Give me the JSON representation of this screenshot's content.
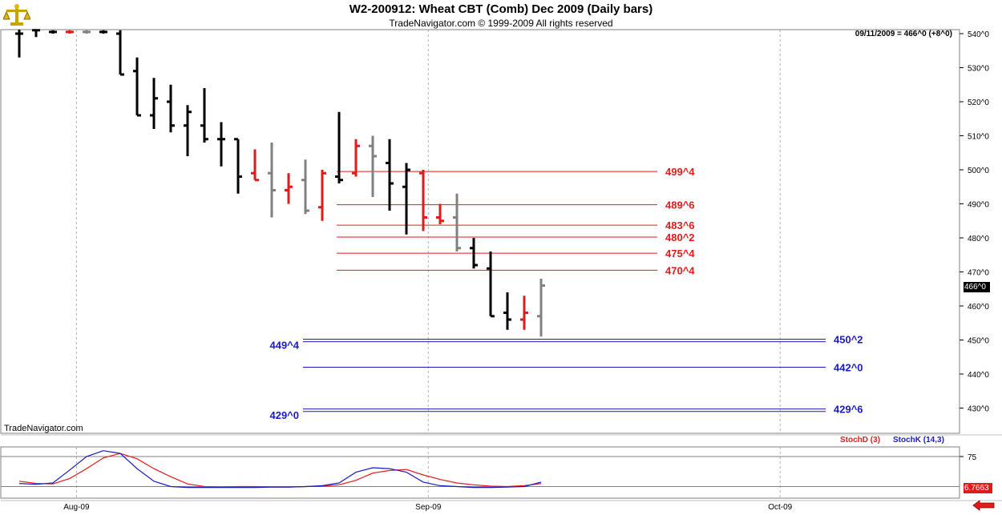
{
  "header": {
    "title": "W2-200912:  Wheat CBT (Comb) Dec 2009  (Daily bars)",
    "subtitle": "TradeNavigator.com © 1999-2009 All rights reserved",
    "stamp": "09/11/2009 = 466^0 (+8^0)",
    "brand": "TradeNavigator.com"
  },
  "icons": {
    "logo": "scales-logo-icon",
    "nav": "left-arrow-icon"
  },
  "colors": {
    "up": "#e31a1a",
    "down": "#000000",
    "flat": "#808080",
    "red_level": "#e31a1a",
    "blue_level": "#1a1ac8",
    "stoch_d": "#e31a1a",
    "stoch_k": "#1a1ac8"
  },
  "chart_data": [
    {
      "type": "ohlc",
      "title": "W2-200912:  Wheat CBT (Comb) Dec 2009  (Daily bars)",
      "y_axis_side": "right",
      "ylim": [
        423,
        542
      ],
      "y_ticks": [
        "540^0",
        "530^0",
        "520^0",
        "510^0",
        "500^0",
        "490^0",
        "480^0",
        "470^0",
        "460^0",
        "450^0",
        "440^0",
        "430^0"
      ],
      "y_tick_values": [
        540,
        530,
        520,
        510,
        500,
        490,
        480,
        470,
        460,
        450,
        440,
        430
      ],
      "x_ticks": [
        "Aug-09",
        "Sep-09",
        "Oct-09"
      ],
      "last_price_label": "466^0",
      "grid": "vertical dashed at month starts",
      "bars": [
        {
          "h": 542,
          "l": 533,
          "o": 540,
          "c": 540,
          "col": "down"
        },
        {
          "h": 542,
          "l": 539,
          "o": 541,
          "c": 541,
          "col": "down"
        },
        {
          "h": 541,
          "l": 540,
          "o": 540.5,
          "c": 540.5,
          "col": "down"
        },
        {
          "h": 541,
          "l": 540,
          "o": 540.5,
          "c": 540.5,
          "col": "up"
        },
        {
          "h": 541,
          "l": 540,
          "o": 540.5,
          "c": 540.5,
          "col": "flat"
        },
        {
          "h": 541,
          "l": 540,
          "o": 540.5,
          "c": 540.5,
          "col": "down"
        },
        {
          "h": 541,
          "l": 528,
          "o": 540,
          "c": 528,
          "col": "down"
        },
        {
          "h": 533,
          "l": 516,
          "o": 529,
          "c": 516,
          "col": "down"
        },
        {
          "h": 527,
          "l": 512,
          "o": 516,
          "c": 521,
          "col": "down"
        },
        {
          "h": 525,
          "l": 511,
          "o": 520,
          "c": 513,
          "col": "down"
        },
        {
          "h": 519,
          "l": 504,
          "o": 513,
          "c": 517,
          "col": "down"
        },
        {
          "h": 524,
          "l": 508,
          "o": 513,
          "c": 509,
          "col": "down"
        },
        {
          "h": 514,
          "l": 501,
          "o": 509,
          "c": 509,
          "col": "down"
        },
        {
          "h": 509,
          "l": 493,
          "o": 509,
          "c": 498,
          "col": "down"
        },
        {
          "h": 506,
          "l": 497,
          "o": 499,
          "c": 497,
          "col": "up"
        },
        {
          "h": 508,
          "l": 486,
          "o": 499,
          "c": 494,
          "col": "flat"
        },
        {
          "h": 499,
          "l": 490,
          "o": 494,
          "c": 495,
          "col": "up"
        },
        {
          "h": 503,
          "l": 487,
          "o": 497,
          "c": 488,
          "col": "flat"
        },
        {
          "h": 500,
          "l": 485,
          "o": 489,
          "c": 499,
          "col": "up"
        },
        {
          "h": 517,
          "l": 496,
          "o": 498,
          "c": 497,
          "col": "down"
        },
        {
          "h": 509,
          "l": 498,
          "o": 499,
          "c": 507,
          "col": "up"
        },
        {
          "h": 510,
          "l": 492,
          "o": 507,
          "c": 504,
          "col": "flat"
        },
        {
          "h": 509,
          "l": 488,
          "o": 502,
          "c": 496,
          "col": "down"
        },
        {
          "h": 502,
          "l": 481,
          "o": 495,
          "c": 500,
          "col": "down"
        },
        {
          "h": 500,
          "l": 482,
          "o": 499,
          "c": 486,
          "col": "up"
        },
        {
          "h": 490,
          "l": 484,
          "o": 486,
          "c": 485,
          "col": "up"
        },
        {
          "h": 493,
          "l": 476,
          "o": 486,
          "c": 477,
          "col": "flat"
        },
        {
          "h": 480,
          "l": 471,
          "o": 477,
          "c": 472,
          "col": "down"
        },
        {
          "h": 476,
          "l": 457,
          "o": 471,
          "c": 457,
          "col": "down"
        },
        {
          "h": 464,
          "l": 453,
          "o": 458,
          "c": 456,
          "col": "down"
        },
        {
          "h": 463,
          "l": 453,
          "o": 456,
          "c": 458,
          "col": "up"
        },
        {
          "h": 468,
          "l": 451,
          "o": 457,
          "c": 466,
          "col": "flat"
        }
      ],
      "levels": [
        {
          "value": 499.5,
          "label": "499^4",
          "color": "red_level",
          "side": "right",
          "start_bar": 19
        },
        {
          "value": 489.75,
          "label": "489^6",
          "color": "red_level",
          "side": "right",
          "start_bar": 19
        },
        {
          "value": 483.75,
          "label": "483^6",
          "color": "red_level",
          "side": "right",
          "start_bar": 19
        },
        {
          "value": 480.25,
          "label": "480^2",
          "color": "red_level",
          "side": "right",
          "start_bar": 19
        },
        {
          "value": 475.5,
          "label": "475^4",
          "color": "red_level",
          "side": "right",
          "start_bar": 19
        },
        {
          "value": 470.5,
          "label": "470^4",
          "color": "red_level",
          "side": "right",
          "start_bar": 19
        },
        {
          "value": 450.25,
          "label": "450^2",
          "color": "blue_level",
          "side": "right",
          "start_bar": 17
        },
        {
          "value": 449.5,
          "label": "449^4",
          "color": "blue_level",
          "side": "left",
          "start_bar": 17
        },
        {
          "value": 442.0,
          "label": "442^0",
          "color": "blue_level",
          "side": "right",
          "start_bar": 17
        },
        {
          "value": 429.75,
          "label": "429^6",
          "color": "blue_level",
          "side": "right",
          "start_bar": 17
        },
        {
          "value": 429.0,
          "label": "429^0",
          "color": "blue_level",
          "side": "left",
          "start_bar": 17
        }
      ]
    },
    {
      "type": "line",
      "legend": [
        "StochD (3)",
        "StochK (14,3)"
      ],
      "ylim": [
        0,
        100
      ],
      "y_ticks": [
        "75"
      ],
      "y_tick_values": [
        75
      ],
      "last_value_label": "6.7663",
      "series": [
        {
          "name": "StochD (3)",
          "color": "stoch_d",
          "values": [
            20,
            15,
            14,
            26,
            48,
            72,
            82,
            70,
            48,
            30,
            14,
            8,
            7,
            8,
            8,
            7,
            7,
            8,
            9,
            12,
            22,
            38,
            44,
            46,
            34,
            24,
            16,
            12,
            9,
            8,
            10,
            15
          ]
        },
        {
          "name": "StochK (14,3)",
          "color": "stoch_k",
          "values": [
            15,
            13,
            16,
            45,
            75,
            88,
            82,
            48,
            20,
            8,
            6,
            6,
            6,
            6,
            6,
            7,
            7,
            8,
            10,
            16,
            40,
            50,
            48,
            40,
            18,
            10,
            8,
            6,
            6,
            7,
            8,
            18
          ]
        }
      ]
    }
  ]
}
